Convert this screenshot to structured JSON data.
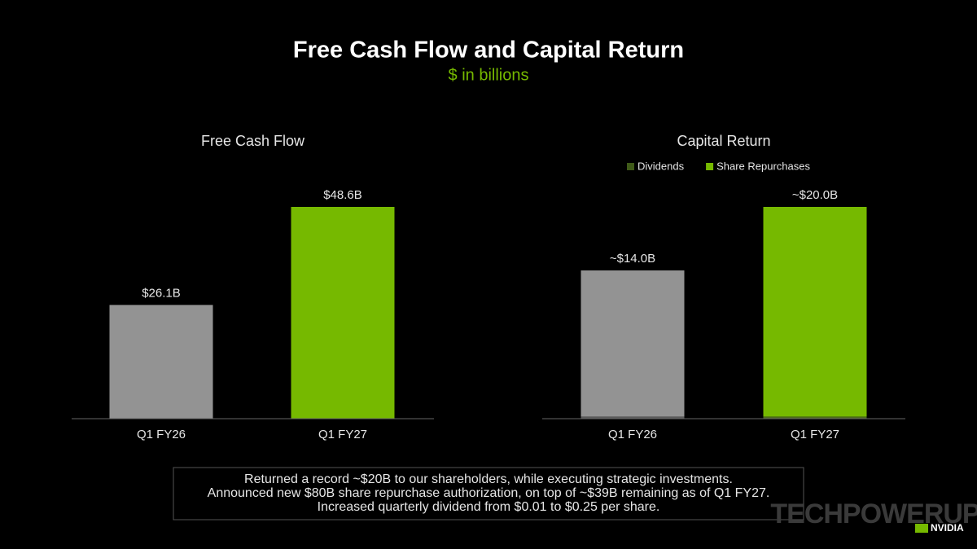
{
  "title": "Free Cash Flow and Capital Return",
  "subtitle": "$ in billions",
  "chart_data": [
    {
      "type": "bar",
      "title": "Free Cash Flow",
      "categories": [
        "Q1 FY26",
        "Q1 FY27"
      ],
      "values": [
        26.1,
        48.6
      ],
      "value_labels": [
        "$26.1B",
        "$48.6B"
      ],
      "colors": [
        "#939393",
        "#76b900"
      ]
    },
    {
      "type": "stacked_bar",
      "title": "Capital Return",
      "categories": [
        "Q1 FY26",
        "Q1 FY27"
      ],
      "series": [
        {
          "name": "Dividends",
          "color": "#3f5a18",
          "bar_colors": [
            "#5a5a5a",
            "#4d6a1c"
          ],
          "values": [
            0.2,
            0.2
          ]
        },
        {
          "name": "Share Repurchases",
          "color": "#76b900",
          "bar_colors": [
            "#939393",
            "#76b900"
          ],
          "values": [
            13.8,
            19.8
          ]
        }
      ],
      "total_labels": [
        "~$14.0B",
        "~$20.0B"
      ]
    }
  ],
  "notes": [
    "Returned a record ~$20B to our shareholders, while executing strategic investments.",
    "Announced new $80B share repurchase authorization, on top of ~$39B remaining as of Q1 FY27.",
    "Increased quarterly dividend from $0.01 to $0.25 per share."
  ],
  "footer": {
    "watermark": "TECHPOWERUP",
    "logo": "NVIDIA"
  }
}
